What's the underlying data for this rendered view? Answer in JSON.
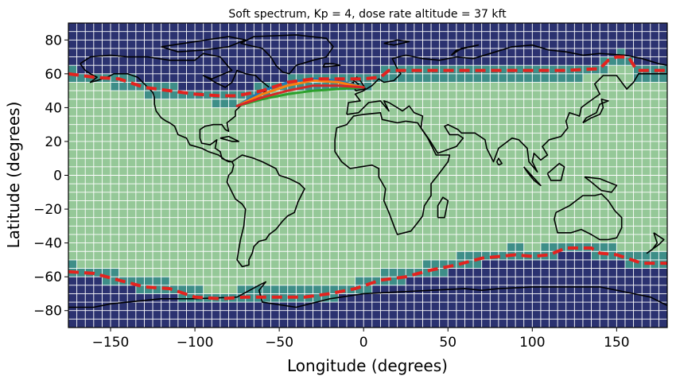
{
  "chart_data": {
    "type": "heatmap",
    "title": "Soft spectrum, Kp = 4, dose rate altitude = 37 kft",
    "xlabel": "Longitude (degrees)",
    "ylabel": "Latitude (degrees)",
    "xlim": [
      -175,
      180
    ],
    "ylim": [
      -90,
      90
    ],
    "x_ticks": [
      -150,
      -100,
      -50,
      0,
      50,
      100,
      150
    ],
    "y_ticks": [
      -80,
      -60,
      -40,
      -20,
      0,
      20,
      40,
      60,
      80
    ],
    "grid": true,
    "grid_step_degrees": 5,
    "colors": {
      "high_region": "#2b3270",
      "transition_region": "#3e8e88",
      "low_region": "#95c898",
      "boundary": "#e3231f",
      "coastline": "#000000",
      "grid": "#ffffff"
    },
    "north_boundary": [
      {
        "lon": -175,
        "lat": 60
      },
      {
        "lon": -160,
        "lat": 58
      },
      {
        "lon": -145,
        "lat": 57
      },
      {
        "lon": -130,
        "lat": 52
      },
      {
        "lon": -115,
        "lat": 50
      },
      {
        "lon": -100,
        "lat": 48
      },
      {
        "lon": -85,
        "lat": 47
      },
      {
        "lon": -75,
        "lat": 47
      },
      {
        "lon": -60,
        "lat": 50
      },
      {
        "lon": -45,
        "lat": 55
      },
      {
        "lon": -30,
        "lat": 57
      },
      {
        "lon": -15,
        "lat": 57
      },
      {
        "lon": 0,
        "lat": 57
      },
      {
        "lon": 10,
        "lat": 58
      },
      {
        "lon": 15,
        "lat": 62
      },
      {
        "lon": 30,
        "lat": 62
      },
      {
        "lon": 60,
        "lat": 62
      },
      {
        "lon": 90,
        "lat": 62
      },
      {
        "lon": 120,
        "lat": 62
      },
      {
        "lon": 140,
        "lat": 63
      },
      {
        "lon": 145,
        "lat": 68
      },
      {
        "lon": 150,
        "lat": 70
      },
      {
        "lon": 157,
        "lat": 70
      },
      {
        "lon": 162,
        "lat": 62
      },
      {
        "lon": 180,
        "lat": 62
      }
    ],
    "south_boundary": [
      {
        "lon": -175,
        "lat": -57
      },
      {
        "lon": -160,
        "lat": -58
      },
      {
        "lon": -145,
        "lat": -62
      },
      {
        "lon": -130,
        "lat": -66
      },
      {
        "lon": -115,
        "lat": -67
      },
      {
        "lon": -100,
        "lat": -72
      },
      {
        "lon": -85,
        "lat": -73
      },
      {
        "lon": -70,
        "lat": -72
      },
      {
        "lon": -50,
        "lat": -72
      },
      {
        "lon": -35,
        "lat": -72
      },
      {
        "lon": -20,
        "lat": -70
      },
      {
        "lon": -5,
        "lat": -67
      },
      {
        "lon": 10,
        "lat": -62
      },
      {
        "lon": 25,
        "lat": -60
      },
      {
        "lon": 40,
        "lat": -56
      },
      {
        "lon": 55,
        "lat": -53
      },
      {
        "lon": 70,
        "lat": -49
      },
      {
        "lon": 90,
        "lat": -47
      },
      {
        "lon": 100,
        "lat": -48
      },
      {
        "lon": 110,
        "lat": -47
      },
      {
        "lon": 120,
        "lat": -43
      },
      {
        "lon": 135,
        "lat": -43
      },
      {
        "lon": 140,
        "lat": -46
      },
      {
        "lon": 150,
        "lat": -47
      },
      {
        "lon": 165,
        "lat": -52
      },
      {
        "lon": 180,
        "lat": -52
      }
    ],
    "flight_paths": [
      {
        "color": "#1f77b4",
        "points": [
          [
            -75,
            41
          ],
          [
            -60,
            50
          ],
          [
            -45,
            55
          ],
          [
            -30,
            57
          ],
          [
            -15,
            56
          ],
          [
            0,
            52
          ]
        ]
      },
      {
        "color": "#ff7f0e",
        "points": [
          [
            -75,
            41
          ],
          [
            -60,
            48
          ],
          [
            -45,
            53
          ],
          [
            -30,
            56
          ],
          [
            -15,
            55
          ],
          [
            0,
            52
          ]
        ]
      },
      {
        "color": "#2ca02c",
        "points": [
          [
            -75,
            41
          ],
          [
            -60,
            45
          ],
          [
            -45,
            48
          ],
          [
            -30,
            50
          ],
          [
            -15,
            51
          ],
          [
            0,
            52
          ]
        ]
      },
      {
        "color": "#d62728",
        "points": [
          [
            -75,
            41
          ],
          [
            -60,
            46
          ],
          [
            -45,
            50
          ],
          [
            -30,
            53
          ],
          [
            -15,
            53
          ],
          [
            0,
            52
          ]
        ]
      }
    ]
  }
}
